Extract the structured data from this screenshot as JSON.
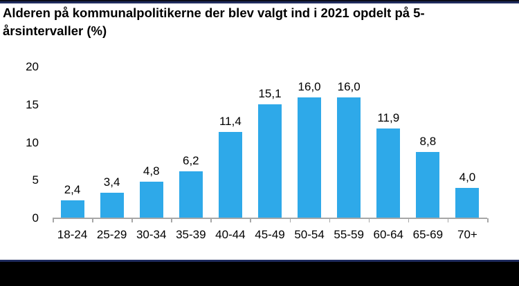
{
  "page": {
    "title_line1": "Alderen på kommunalpolitikerne der blev valgt ind i 2021 opdelt på 5-",
    "title_line2": "årsintervaller (%)"
  },
  "colors": {
    "bar": "#2EA9E9",
    "axis": "#A6A6A6",
    "text": "#000000",
    "border_navy": "#1F2B5E",
    "border_black": "#0B0D18",
    "letterbox_black": "#000000",
    "background": "#FFFFFF"
  },
  "chart_data": {
    "type": "bar",
    "title": "Alderen på kommunalpolitikerne der blev valgt ind i 2021 opdelt på 5-årsintervaller (%)",
    "categories": [
      "18-24",
      "25-29",
      "30-34",
      "35-39",
      "40-44",
      "45-49",
      "50-54",
      "55-59",
      "60-64",
      "65-69",
      "70+"
    ],
    "values": [
      2.4,
      3.4,
      4.8,
      6.2,
      11.4,
      15.1,
      16.0,
      16.0,
      11.9,
      8.8,
      4.0
    ],
    "value_labels": [
      "2,4",
      "3,4",
      "4,8",
      "6,2",
      "11,4",
      "15,1",
      "16,0",
      "16,0",
      "11,9",
      "8,8",
      "4,0"
    ],
    "xlabel": "",
    "ylabel": "",
    "ylim": [
      0,
      20
    ],
    "y_ticks": [
      0,
      5,
      10,
      15,
      20
    ],
    "y_tick_labels": [
      "0",
      "5",
      "10",
      "15",
      "20"
    ],
    "grid": false,
    "legend": false,
    "decimal_separator": ","
  }
}
